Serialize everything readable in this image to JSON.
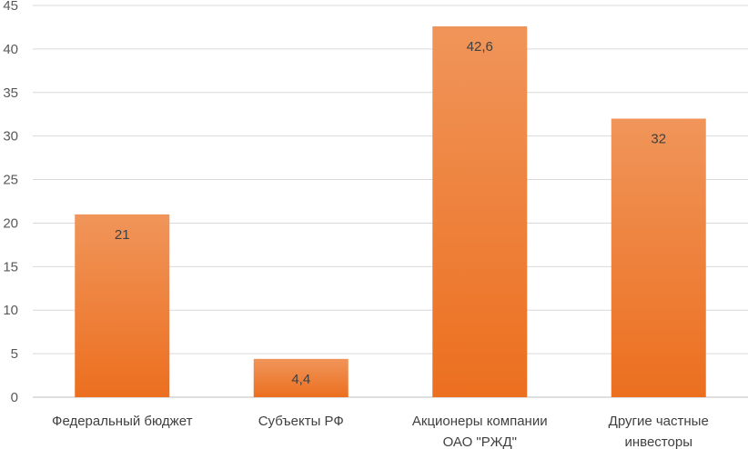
{
  "chart_data": {
    "type": "bar",
    "title": "",
    "xlabel": "",
    "ylabel": "",
    "categories": [
      [
        "Федеральный бюджет"
      ],
      [
        "Субъекты РФ"
      ],
      [
        "Акционеры компании",
        "ОАО \"РЖД\""
      ],
      [
        "Другие частные",
        "инвесторы"
      ]
    ],
    "values": [
      21,
      4.4,
      42.6,
      32
    ],
    "data_labels": [
      "21",
      "4,4",
      "42,6",
      "32"
    ],
    "ylim": [
      0,
      45
    ],
    "yticks": [
      0,
      5,
      10,
      15,
      20,
      25,
      30,
      35,
      40,
      45
    ],
    "grid": true,
    "legend": "none",
    "colors": {
      "bar_top": "#f0955a",
      "bar_bottom": "#ec6f1f"
    }
  }
}
